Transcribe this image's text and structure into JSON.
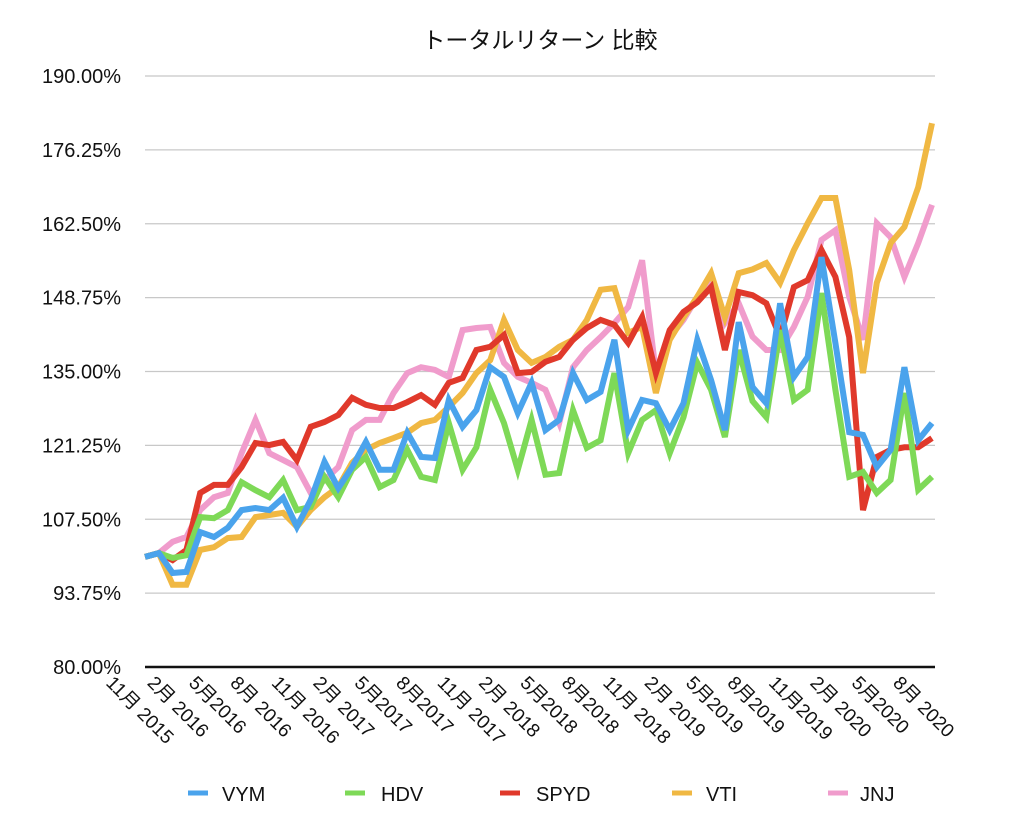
{
  "chart_data": {
    "type": "line",
    "title": "トータルリターン 比較",
    "xlabel": "",
    "ylabel": "",
    "ylim": [
      80,
      190
    ],
    "yticks": [
      "80.00%",
      "93.75%",
      "107.50%",
      "121.25%",
      "135.00%",
      "148.75%",
      "162.50%",
      "176.25%",
      "190.00%"
    ],
    "ytick_values": [
      80,
      93.75,
      107.5,
      121.25,
      135,
      148.75,
      162.5,
      176.25,
      190
    ],
    "grid": true,
    "legend": "bottom",
    "x_range": [
      "2015-11",
      "2020-08"
    ],
    "x_interval": "monthly",
    "xtick_labels": [
      "11月 2015",
      "2月 2016",
      "5月2016",
      "8月 2016",
      "11月 2016",
      "2月 2017",
      "5月2017",
      "8月2017",
      "11月 2017",
      "2月 2018",
      "5月2018",
      "8月2018",
      "11月 2018",
      "2月 2019",
      "5月2019",
      "8月2019",
      "11月2019",
      "2月 2020",
      "5月2020",
      "8月 2020"
    ],
    "series": [
      {
        "name": "VYM",
        "color": "#4aa3ec",
        "values": [
          100.5,
          101.2,
          97.5,
          97.7,
          105.1,
          104.2,
          105.9,
          109.2,
          109.6,
          109.2,
          111.5,
          106.1,
          111.1,
          118.2,
          113.3,
          117.2,
          121.9,
          116.7,
          116.7,
          123.6,
          119.1,
          118.9,
          129.7,
          124.7,
          127.8,
          135.8,
          134,
          127.3,
          132.9,
          124.1,
          126,
          134.7,
          129.7,
          131.2,
          140.9,
          124.1,
          129.7,
          129.1,
          124.1,
          129.1,
          140.9,
          133.4,
          124.1,
          144.2,
          132.1,
          129.1,
          147.7,
          134,
          137.7,
          156.3,
          140.3,
          123.7,
          123.2,
          117.2,
          120.4,
          135.8,
          122.2,
          125.4
        ]
      },
      {
        "name": "HDV",
        "color": "#7ed957",
        "values": [
          100.5,
          101.2,
          100.3,
          100.8,
          107.9,
          107.7,
          109.2,
          114.4,
          112.9,
          111.6,
          114.8,
          109.2,
          109.8,
          115.4,
          111.6,
          116.7,
          119.1,
          113.5,
          114.8,
          120.4,
          115.4,
          114.8,
          125.4,
          116.7,
          120.9,
          131.6,
          125.4,
          116.7,
          126,
          115.8,
          116.1,
          127.8,
          120.8,
          122.2,
          134.7,
          119.8,
          126,
          127.8,
          119.8,
          126.5,
          136.6,
          131.6,
          122.8,
          139,
          129.5,
          126.5,
          142.7,
          129.7,
          131.6,
          149.6,
          131.6,
          115.4,
          116.3,
          112.4,
          114.8,
          131,
          113,
          115.4
        ]
      },
      {
        "name": "SPYD",
        "color": "#e0392b",
        "values": [
          100.5,
          101.2,
          99.9,
          101.8,
          112.4,
          113.9,
          113.9,
          117.2,
          121.7,
          121.3,
          121.9,
          118.5,
          124.7,
          125.6,
          126.9,
          130.1,
          128.8,
          128.2,
          128.2,
          129.3,
          130.6,
          128.8,
          132.9,
          133.8,
          139,
          139.6,
          141.8,
          134.7,
          134.9,
          136.8,
          137.7,
          140.9,
          143.1,
          144.6,
          143.7,
          140.3,
          145.1,
          134.7,
          142.7,
          146.1,
          147.9,
          150.7,
          139,
          149.8,
          149.2,
          147.7,
          141.4,
          150.7,
          152,
          157.6,
          152.6,
          141.4,
          109.2,
          119.1,
          120.4,
          120.9,
          120.9,
          122.6
        ]
      },
      {
        "name": "VTI",
        "color": "#f0b843",
        "values": [
          100.5,
          101.2,
          95.3,
          95.3,
          101.8,
          102.3,
          104,
          104.2,
          107.9,
          108.3,
          108.7,
          106.1,
          109.2,
          111.6,
          113.5,
          118,
          120.4,
          121.7,
          122.6,
          123.6,
          125.4,
          126,
          128.4,
          131,
          134.7,
          137.1,
          144.6,
          139,
          136.6,
          137.7,
          139.6,
          140.9,
          144.6,
          150.2,
          150.5,
          142.2,
          143.3,
          131,
          140.9,
          145.1,
          148.9,
          153.3,
          145.1,
          153.3,
          154,
          155.2,
          151.5,
          157.6,
          162.6,
          167.3,
          167.3,
          153.9,
          134.7,
          151.5,
          158.9,
          161.9,
          169.3,
          181.2
        ]
      },
      {
        "name": "JNJ",
        "color": "#f09ccc",
        "values": [
          100.5,
          101.2,
          103.3,
          104.2,
          109.2,
          111.6,
          112.4,
          119.8,
          126,
          119.8,
          118.5,
          117.2,
          112.4,
          114.8,
          117.2,
          124.1,
          126,
          126,
          131,
          134.7,
          135.8,
          135.3,
          134,
          142.7,
          143.1,
          143.3,
          136.6,
          134,
          132.9,
          131.6,
          125.4,
          135.8,
          139,
          141.4,
          144,
          147,
          155.7,
          134.7,
          141.4,
          144.6,
          148.9,
          152.6,
          144,
          147.7,
          141.5,
          139,
          139,
          143.3,
          148.9,
          159.5,
          161.3,
          148.9,
          140.9,
          162.6,
          160,
          152.6,
          158.9,
          166
        ]
      }
    ]
  }
}
